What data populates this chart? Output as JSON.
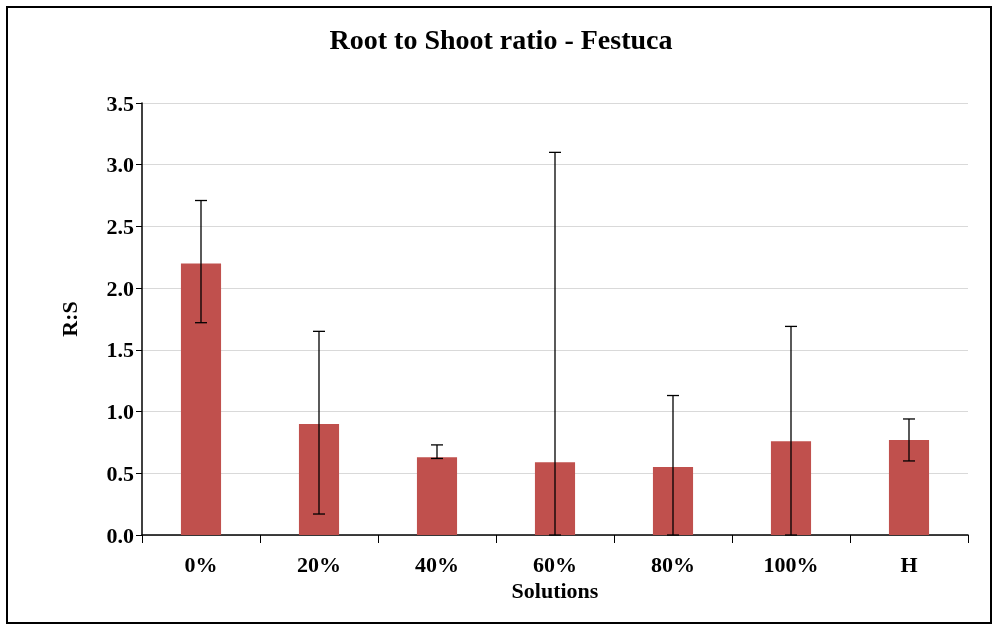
{
  "chart_data": {
    "type": "bar",
    "title": "Root to Shoot ratio - Festuca",
    "xlabel": "Solutions",
    "ylabel": "R:S",
    "categories": [
      "0%",
      "20%",
      "40%",
      "60%",
      "80%",
      "100%",
      "H"
    ],
    "values": [
      2.2,
      0.9,
      0.63,
      0.59,
      0.55,
      0.76,
      0.77
    ],
    "errors": [
      [
        1.72,
        2.71
      ],
      [
        0.17,
        1.65
      ],
      [
        0.62,
        0.73
      ],
      [
        0,
        3.1
      ],
      [
        0,
        1.13
      ],
      [
        0,
        1.69
      ],
      [
        0.6,
        0.94
      ]
    ],
    "color": "#c0504d",
    "ylim": [
      0,
      3.5
    ],
    "yticks": [
      {
        "value": 0,
        "label": "0.0"
      },
      {
        "value": 0.5,
        "label": "0.5"
      },
      {
        "value": 1,
        "label": "1.0"
      },
      {
        "value": 1.5,
        "label": "1.5"
      },
      {
        "value": 2,
        "label": "2.0"
      },
      {
        "value": 2.5,
        "label": "2.5"
      },
      {
        "value": 3,
        "label": "3.0"
      },
      {
        "value": 3.5,
        "label": "3.5"
      }
    ],
    "grid": "y"
  }
}
